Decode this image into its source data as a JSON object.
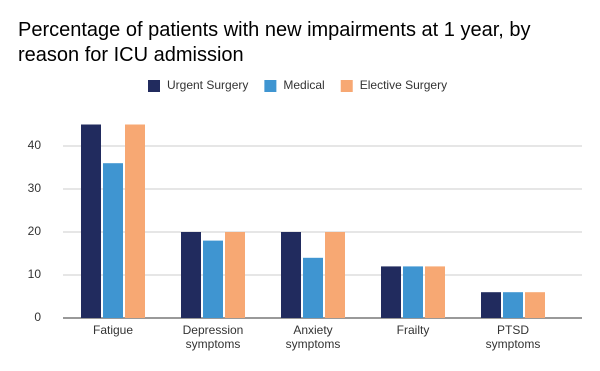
{
  "chart_data": {
    "type": "bar",
    "title": "Percentage of patients with new impairments at 1 year, by reason for ICU admission",
    "categories": [
      "Fatigue",
      "Depression symptoms",
      "Anxiety symptoms",
      "Frailty",
      "PTSD symptoms"
    ],
    "series": [
      {
        "name": "Urgent Surgery",
        "color": "#212b5e",
        "values": [
          45,
          20,
          20,
          12,
          6
        ]
      },
      {
        "name": "Medical",
        "color": "#3f95d1",
        "values": [
          36,
          18,
          14,
          12,
          6
        ]
      },
      {
        "name": "Elective Surgery",
        "color": "#f7a873",
        "values": [
          45,
          20,
          20,
          12,
          6
        ]
      }
    ],
    "ylim": [
      0,
      50
    ],
    "yticks": [
      0,
      10,
      20,
      30,
      40
    ],
    "grid": true,
    "legend": "top"
  }
}
